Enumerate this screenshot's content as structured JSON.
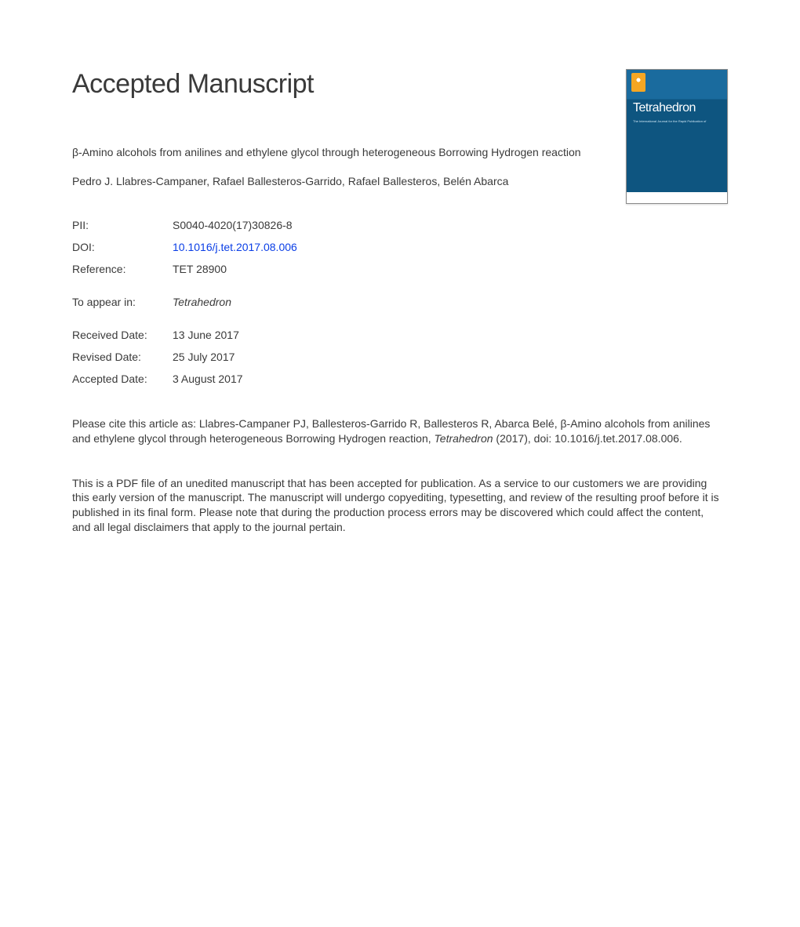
{
  "header": {
    "title": "Accepted Manuscript"
  },
  "cover": {
    "journal_name": "Tetrahedron",
    "subtitle_lines": "The International Journal for the Rapid Publication of",
    "colors": {
      "top_band": "#1a6b9e",
      "body": "#0e5580",
      "publisher_badge": "#f5a623",
      "text": "#ffffff"
    }
  },
  "article": {
    "title": "β-Amino alcohols from anilines and ethylene glycol through heterogeneous Borrowing Hydrogen reaction",
    "authors": "Pedro J. Llabres-Campaner, Rafael Ballesteros-Garrido, Rafael Ballesteros, Belén Abarca"
  },
  "meta": {
    "pii_label": "PII:",
    "pii_value": "S0040-4020(17)30826-8",
    "doi_label": "DOI:",
    "doi_value": "10.1016/j.tet.2017.08.006",
    "ref_label": "Reference:",
    "ref_value": "TET 28900",
    "appear_label": "To appear in:",
    "appear_value": "Tetrahedron",
    "received_label": "Received Date:",
    "received_value": "13 June 2017",
    "revised_label": "Revised Date:",
    "revised_value": "25 July 2017",
    "accepted_label": "Accepted Date:",
    "accepted_value": "3 August 2017"
  },
  "citation": {
    "prefix": "Please cite this article as: Llabres-Campaner PJ, Ballesteros-Garrido R, Ballesteros R, Abarca Belé, β-Amino alcohols from anilines and ethylene glycol through heterogeneous Borrowing Hydrogen reaction, ",
    "journal_ital": "Tetrahedron",
    "suffix": " (2017), doi: 10.1016/j.tet.2017.08.006."
  },
  "disclaimer": "This is a PDF file of an unedited manuscript that has been accepted for publication. As a service to our customers we are providing this early version of the manuscript. The manuscript will undergo copyediting, typesetting, and review of the resulting proof before it is published in its final form. Please note that during the production process errors may be discovered which could affect the content, and all legal disclaimers that apply to the journal pertain."
}
